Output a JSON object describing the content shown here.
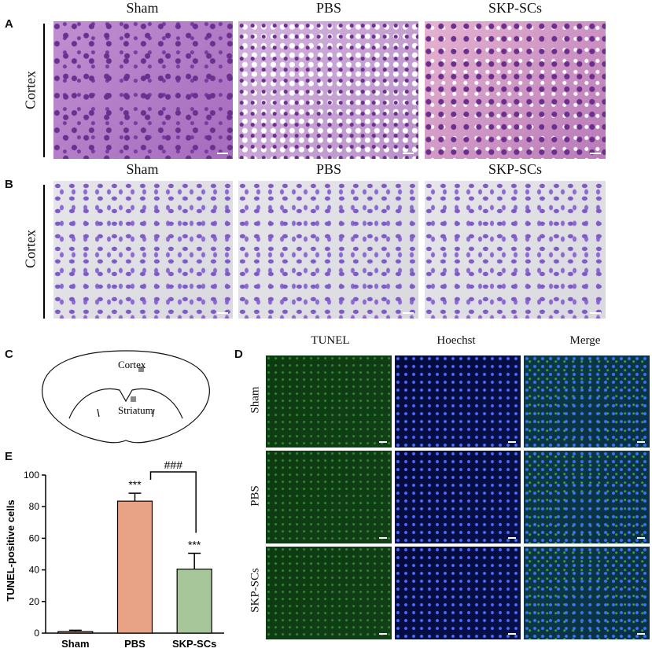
{
  "panels": {
    "A": {
      "label": "A",
      "columns": [
        "Sham",
        "PBS",
        "SKP-SCs"
      ],
      "row_label": "Cortex"
    },
    "B": {
      "label": "B",
      "columns": [
        "Sham",
        "PBS",
        "SKP-SCs"
      ],
      "row_label": "Cortex"
    },
    "C": {
      "label": "C",
      "region_labels": [
        "Cortex",
        "Striatum"
      ]
    },
    "D": {
      "label": "D",
      "columns": [
        "TUNEL",
        "Hoechst",
        "Merge"
      ],
      "rows": [
        "Sham",
        "PBS",
        "SKP-SCs"
      ]
    },
    "E": {
      "label": "E"
    }
  },
  "chart_data": {
    "type": "bar",
    "categories": [
      "Sham",
      "PBS",
      "SKP-SCs"
    ],
    "values": [
      1,
      83.5,
      40.5
    ],
    "errors": [
      0.8,
      5,
      10
    ],
    "colors": [
      "#e8a286",
      "#e8a286",
      "#a7c79a"
    ],
    "ylabel": "TUNEL-positive cells",
    "ylim": [
      0,
      100
    ],
    "yticks": [
      0,
      20,
      40,
      60,
      80,
      100
    ],
    "annotations": {
      "PBS": "***",
      "SKP-SCs": "***",
      "comparison": "###"
    }
  }
}
